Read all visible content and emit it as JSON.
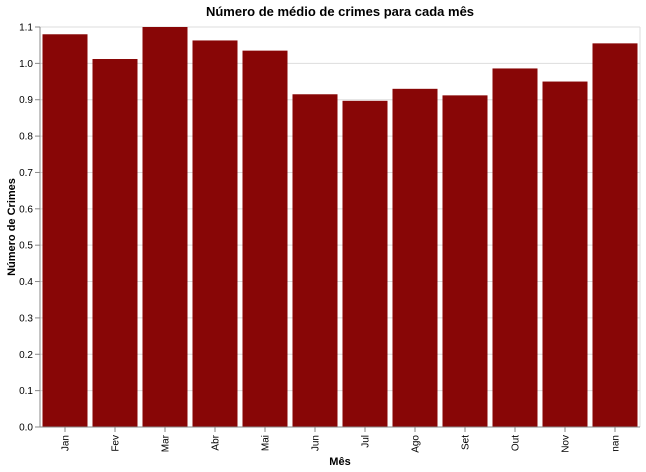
{
  "chart_data": {
    "type": "bar",
    "title": "Número de médio de crimes para cada mês",
    "xlabel": "Mês",
    "ylabel": "Número de Crimes",
    "categories": [
      "Jan",
      "Fev",
      "Mar",
      "Abr",
      "Mai",
      "Jun",
      "Jul",
      "Ago",
      "Set",
      "Out",
      "Nov",
      "nan"
    ],
    "values": [
      1.08,
      1.012,
      1.1,
      1.063,
      1.035,
      0.915,
      0.897,
      0.93,
      0.912,
      0.986,
      0.95,
      1.055
    ],
    "ylim": [
      0,
      1.1
    ],
    "yticks": [
      "0.0",
      "0.1",
      "0.2",
      "0.3",
      "0.4",
      "0.5",
      "0.6",
      "0.7",
      "0.8",
      "0.9",
      "1.0",
      "1.1"
    ],
    "bar_color": "#880606",
    "grid": true,
    "legend": "none"
  }
}
